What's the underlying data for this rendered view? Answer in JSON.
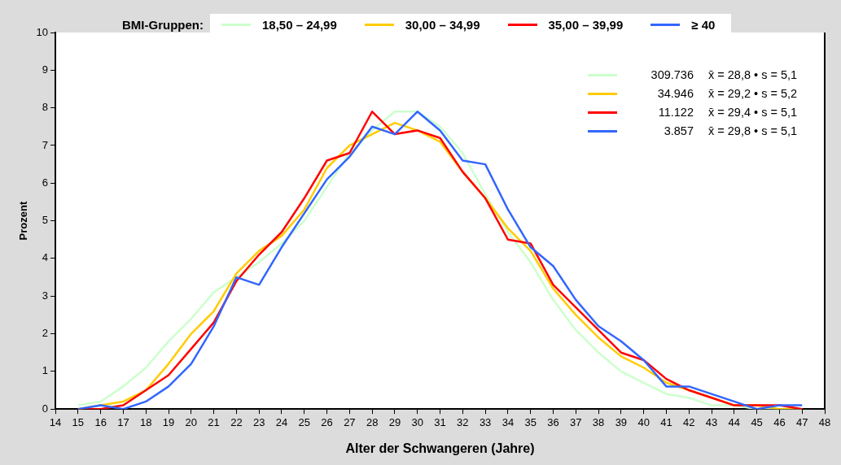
{
  "chart_data": {
    "type": "line",
    "xlabel": "Alter der Schwangeren (Jahre)",
    "ylabel": "Prozent",
    "legend_title": "BMI-Gruppen:",
    "legend": "top",
    "marker": "none",
    "line_style": "solid",
    "x": [
      15,
      16,
      17,
      18,
      19,
      20,
      21,
      22,
      23,
      24,
      25,
      26,
      27,
      28,
      29,
      30,
      31,
      32,
      33,
      34,
      35,
      36,
      37,
      38,
      39,
      40,
      41,
      42,
      43,
      44,
      45,
      46,
      47
    ],
    "xlim": [
      14,
      48
    ],
    "xticks": [
      14,
      15,
      16,
      17,
      18,
      19,
      20,
      21,
      22,
      23,
      24,
      25,
      26,
      27,
      28,
      29,
      30,
      31,
      32,
      33,
      34,
      35,
      36,
      37,
      38,
      39,
      40,
      41,
      42,
      43,
      44,
      45,
      46,
      47,
      48
    ],
    "ylim": [
      0,
      10
    ],
    "yticks": [
      0,
      1,
      2,
      3,
      4,
      5,
      6,
      7,
      8,
      9,
      10
    ],
    "series": [
      {
        "name": "18,50 – 24,99",
        "color": "#ccffcc",
        "values": [
          0.1,
          0.2,
          0.6,
          1.1,
          1.8,
          2.4,
          3.1,
          3.5,
          3.9,
          4.4,
          5.0,
          5.9,
          6.8,
          7.4,
          7.9,
          7.9,
          7.5,
          6.8,
          5.7,
          4.7,
          3.9,
          2.9,
          2.1,
          1.5,
          1.0,
          0.7,
          0.4,
          0.3,
          0.1,
          0.1,
          0.0,
          0.0,
          0.0
        ]
      },
      {
        "name": "30,00 – 34,99",
        "color": "#ffcc00",
        "values": [
          0.0,
          0.1,
          0.2,
          0.5,
          1.2,
          2.0,
          2.6,
          3.6,
          4.2,
          4.6,
          5.3,
          6.4,
          7.0,
          7.3,
          7.6,
          7.4,
          7.1,
          6.3,
          5.6,
          4.8,
          4.2,
          3.2,
          2.5,
          1.9,
          1.4,
          1.1,
          0.7,
          0.5,
          0.3,
          0.1,
          0.1,
          0.0,
          0.0
        ]
      },
      {
        "name": "35,00 – 39,99",
        "color": "#ff0000",
        "values": [
          0.0,
          0.0,
          0.1,
          0.5,
          0.9,
          1.6,
          2.3,
          3.4,
          4.1,
          4.7,
          5.6,
          6.6,
          6.8,
          7.9,
          7.3,
          7.4,
          7.2,
          6.3,
          5.6,
          4.5,
          4.4,
          3.3,
          2.7,
          2.1,
          1.5,
          1.3,
          0.8,
          0.5,
          0.3,
          0.1,
          0.1,
          0.1,
          0.0
        ]
      },
      {
        "name": "≥ 40",
        "color": "#3366ff",
        "values": [
          0.0,
          0.1,
          0.0,
          0.2,
          0.6,
          1.2,
          2.2,
          3.5,
          3.3,
          4.3,
          5.2,
          6.1,
          6.7,
          7.5,
          7.3,
          7.9,
          7.4,
          6.6,
          6.5,
          5.3,
          4.3,
          3.8,
          2.9,
          2.2,
          1.8,
          1.3,
          0.6,
          0.6,
          0.4,
          0.2,
          0.0,
          0.1,
          0.1
        ]
      }
    ],
    "annotations": [
      "309.736",
      "x̄ = 28,8 • s = 5,1",
      "34.946",
      "x̄ = 29,2 • s = 5,2",
      "11.122",
      "x̄ = 29,4 • s = 5,1",
      "3.857",
      "x̄ = 29,8 • s = 5,1"
    ]
  }
}
